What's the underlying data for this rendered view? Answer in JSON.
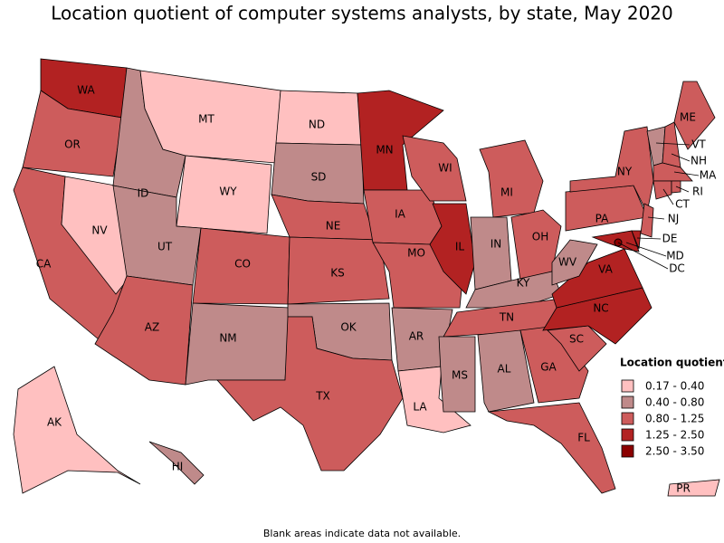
{
  "title": "Location quotient of computer systems analysts, by state, May 2020",
  "footnote": "Blank areas indicate data not available.",
  "legend": {
    "title": "Location quotient",
    "items": [
      {
        "label": "0.17 - 0.40",
        "color": "#ffc0c0"
      },
      {
        "label": "0.40 - 0.80",
        "color": "#bf8a8a"
      },
      {
        "label": "0.80 - 1.25",
        "color": "#cd5c5c"
      },
      {
        "label": "1.25 - 2.50",
        "color": "#b22222"
      },
      {
        "label": "2.50 - 3.50",
        "color": "#8b0000"
      }
    ]
  },
  "states": [
    {
      "abbr": "WA",
      "class": "1.25 - 2.50"
    },
    {
      "abbr": "OR",
      "class": "0.80 - 1.25"
    },
    {
      "abbr": "CA",
      "class": "0.80 - 1.25"
    },
    {
      "abbr": "NV",
      "class": "0.17 - 0.40"
    },
    {
      "abbr": "ID",
      "class": "0.40 - 0.80"
    },
    {
      "abbr": "MT",
      "class": "0.17 - 0.40"
    },
    {
      "abbr": "WY",
      "class": "0.17 - 0.40"
    },
    {
      "abbr": "UT",
      "class": "0.40 - 0.80"
    },
    {
      "abbr": "AZ",
      "class": "0.80 - 1.25"
    },
    {
      "abbr": "CO",
      "class": "0.80 - 1.25"
    },
    {
      "abbr": "NM",
      "class": "0.40 - 0.80"
    },
    {
      "abbr": "ND",
      "class": "0.17 - 0.40"
    },
    {
      "abbr": "SD",
      "class": "0.40 - 0.80"
    },
    {
      "abbr": "NE",
      "class": "0.80 - 1.25"
    },
    {
      "abbr": "KS",
      "class": "0.80 - 1.25"
    },
    {
      "abbr": "OK",
      "class": "0.40 - 0.80"
    },
    {
      "abbr": "TX",
      "class": "0.80 - 1.25"
    },
    {
      "abbr": "MN",
      "class": "1.25 - 2.50"
    },
    {
      "abbr": "IA",
      "class": "0.80 - 1.25"
    },
    {
      "abbr": "MO",
      "class": "0.80 - 1.25"
    },
    {
      "abbr": "AR",
      "class": "0.40 - 0.80"
    },
    {
      "abbr": "LA",
      "class": "0.17 - 0.40"
    },
    {
      "abbr": "WI",
      "class": "0.80 - 1.25"
    },
    {
      "abbr": "IL",
      "class": "1.25 - 2.50"
    },
    {
      "abbr": "MI",
      "class": "0.80 - 1.25"
    },
    {
      "abbr": "IN",
      "class": "0.40 - 0.80"
    },
    {
      "abbr": "OH",
      "class": "0.80 - 1.25"
    },
    {
      "abbr": "KY",
      "class": "0.40 - 0.80"
    },
    {
      "abbr": "TN",
      "class": "0.80 - 1.25"
    },
    {
      "abbr": "MS",
      "class": "0.40 - 0.80"
    },
    {
      "abbr": "AL",
      "class": "0.40 - 0.80"
    },
    {
      "abbr": "GA",
      "class": "0.80 - 1.25"
    },
    {
      "abbr": "FL",
      "class": "0.80 - 1.25"
    },
    {
      "abbr": "SC",
      "class": "0.80 - 1.25"
    },
    {
      "abbr": "NC",
      "class": "1.25 - 2.50"
    },
    {
      "abbr": "VA",
      "class": "1.25 - 2.50"
    },
    {
      "abbr": "WV",
      "class": "0.40 - 0.80"
    },
    {
      "abbr": "PA",
      "class": "0.80 - 1.25"
    },
    {
      "abbr": "NY",
      "class": "0.80 - 1.25"
    },
    {
      "abbr": "VT",
      "class": "0.40 - 0.80"
    },
    {
      "abbr": "NH",
      "class": "0.80 - 1.25"
    },
    {
      "abbr": "ME",
      "class": "0.80 - 1.25"
    },
    {
      "abbr": "MA",
      "class": "0.80 - 1.25"
    },
    {
      "abbr": "CT",
      "class": "0.80 - 1.25"
    },
    {
      "abbr": "RI",
      "class": "0.80 - 1.25"
    },
    {
      "abbr": "NJ",
      "class": "0.80 - 1.25"
    },
    {
      "abbr": "DE",
      "class": "1.25 - 2.50"
    },
    {
      "abbr": "MD",
      "class": "1.25 - 2.50"
    },
    {
      "abbr": "DC",
      "class": "2.50 - 3.50"
    },
    {
      "abbr": "AK",
      "class": "0.17 - 0.40"
    },
    {
      "abbr": "HI",
      "class": "0.40 - 0.80"
    },
    {
      "abbr": "PR",
      "class": "0.17 - 0.40"
    }
  ]
}
